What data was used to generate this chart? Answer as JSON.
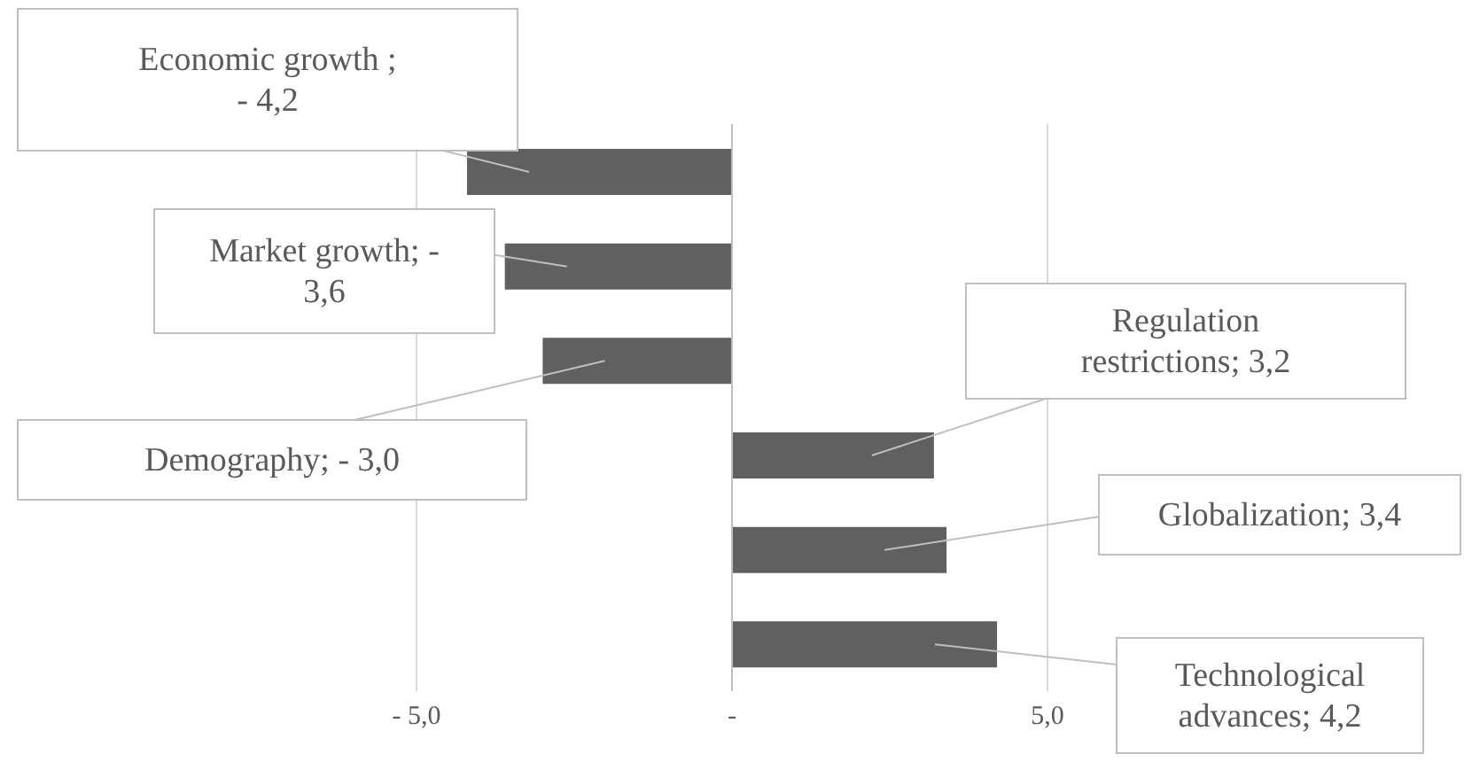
{
  "chart_data": {
    "type": "bar",
    "orientation": "horizontal",
    "categories": [
      null,
      null,
      null,
      null,
      null,
      null
    ],
    "annotations": [
      "Economic growth ; - 4,2",
      "Market growth; - 3,6",
      "Demography; - 3,0",
      "Regulation restrictions; 3,2",
      "Globalization; 3,4",
      "Technological advances; 4,2"
    ],
    "values": [
      -4.2,
      -3.6,
      -3.0,
      3.2,
      3.4,
      4.2
    ],
    "color": "#606060",
    "xlim": [
      -11.6,
      11.6
    ],
    "xticks": [
      {
        "value": -5,
        "label": "- 5,0"
      },
      {
        "value": 0,
        "label": "-"
      },
      {
        "value": 5,
        "label": "5,0"
      }
    ],
    "grid": "x",
    "tick_labels": "x"
  }
}
